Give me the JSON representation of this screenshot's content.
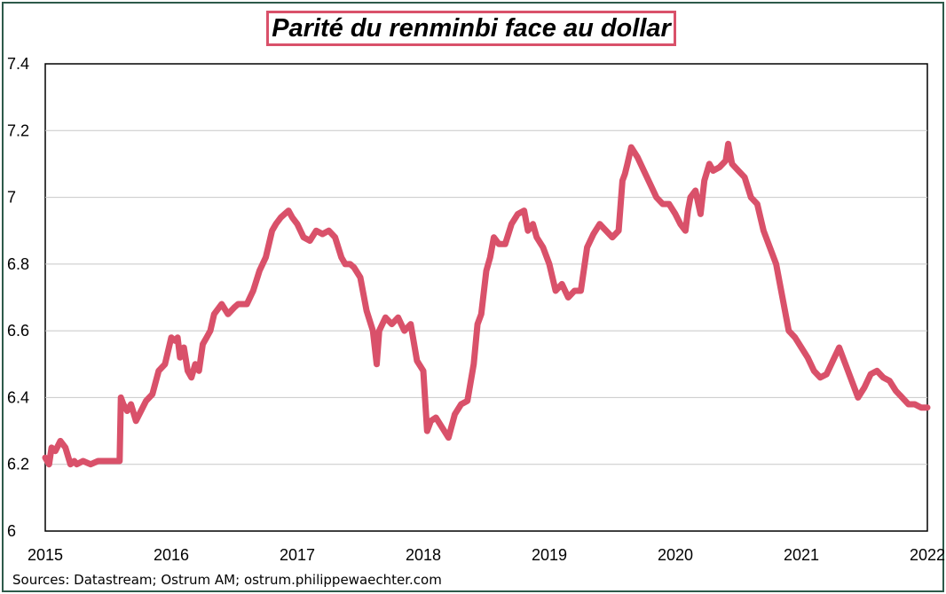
{
  "source": "Sources: Datastream; Ostrum AM; ostrum.philippewaechter.com",
  "chart_data": {
    "type": "line",
    "title": "Parité du renminbi face au dollar",
    "xlabel": "",
    "ylabel": "",
    "xlim": [
      2015,
      2022
    ],
    "ylim": [
      6,
      7.4
    ],
    "xticks": [
      "2015",
      "2016",
      "2017",
      "2018",
      "2019",
      "2020",
      "2021",
      "2022"
    ],
    "yticks": [
      "6",
      "6.2",
      "6.4",
      "6.6",
      "6.8",
      "7",
      "7.2",
      "7.4"
    ],
    "grid": "horizontal",
    "line_color": "#d9516a",
    "series": [
      {
        "x": [
          2015.0,
          2015.03,
          2015.05,
          2015.08,
          2015.12,
          2015.16,
          2015.2,
          2015.23,
          2015.25,
          2015.3,
          2015.36,
          2015.42,
          2015.5,
          2015.55,
          2015.59,
          2015.6,
          2015.62,
          2015.65,
          2015.68,
          2015.72,
          2015.76,
          2015.8,
          2015.85,
          2015.9,
          2015.95,
          2016.0,
          2016.03,
          2016.05,
          2016.07,
          2016.1,
          2016.13,
          2016.16,
          2016.19,
          2016.22,
          2016.25,
          2016.28,
          2016.31,
          2016.34,
          2016.4,
          2016.45,
          2016.5,
          2016.53,
          2016.56,
          2016.6,
          2016.65,
          2016.7,
          2016.75,
          2016.8,
          2016.83,
          2016.87,
          2016.9,
          2016.93,
          2016.96,
          2017.0,
          2017.05,
          2017.1,
          2017.15,
          2017.2,
          2017.25,
          2017.3,
          2017.35,
          2017.38,
          2017.42,
          2017.45,
          2017.5,
          2017.55,
          2017.6,
          2017.63,
          2017.65,
          2017.7,
          2017.75,
          2017.8,
          2017.85,
          2017.9,
          2017.95,
          2018.0,
          2018.03,
          2018.06,
          2018.1,
          2018.15,
          2018.2,
          2018.25,
          2018.3,
          2018.35,
          2018.4,
          2018.43,
          2018.46,
          2018.5,
          2018.53,
          2018.56,
          2018.6,
          2018.65,
          2018.7,
          2018.75,
          2018.8,
          2018.83,
          2018.87,
          2018.9,
          2018.95,
          2019.0,
          2019.05,
          2019.1,
          2019.15,
          2019.2,
          2019.25,
          2019.3,
          2019.35,
          2019.4,
          2019.45,
          2019.5,
          2019.55,
          2019.58,
          2019.6,
          2019.62,
          2019.65,
          2019.7,
          2019.75,
          2019.8,
          2019.85,
          2019.9,
          2019.95,
          2020.0,
          2020.04,
          2020.08,
          2020.1,
          2020.12,
          2020.16,
          2020.2,
          2020.23,
          2020.27,
          2020.3,
          2020.35,
          2020.4,
          2020.42,
          2020.45,
          2020.5,
          2020.55,
          2020.6,
          2020.65,
          2020.7,
          2020.75,
          2020.8,
          2020.85,
          2020.9,
          2020.95,
          2021.0,
          2021.05,
          2021.1,
          2021.15,
          2021.2,
          2021.25,
          2021.3,
          2021.35,
          2021.4,
          2021.45,
          2021.5,
          2021.55,
          2021.6,
          2021.65,
          2021.7,
          2021.75,
          2021.8,
          2021.85,
          2021.9,
          2021.95,
          2022.0
        ],
        "y": [
          6.22,
          6.2,
          6.25,
          6.24,
          6.27,
          6.25,
          6.2,
          6.21,
          6.2,
          6.21,
          6.2,
          6.21,
          6.21,
          6.21,
          6.21,
          6.4,
          6.38,
          6.36,
          6.38,
          6.33,
          6.36,
          6.39,
          6.41,
          6.48,
          6.5,
          6.58,
          6.57,
          6.58,
          6.52,
          6.55,
          6.48,
          6.46,
          6.5,
          6.48,
          6.56,
          6.58,
          6.6,
          6.65,
          6.68,
          6.65,
          6.67,
          6.68,
          6.68,
          6.68,
          6.72,
          6.78,
          6.82,
          6.9,
          6.92,
          6.94,
          6.95,
          6.96,
          6.94,
          6.92,
          6.88,
          6.87,
          6.9,
          6.89,
          6.9,
          6.88,
          6.82,
          6.8,
          6.8,
          6.79,
          6.76,
          6.66,
          6.6,
          6.5,
          6.6,
          6.64,
          6.62,
          6.64,
          6.6,
          6.62,
          6.51,
          6.48,
          6.3,
          6.33,
          6.34,
          6.31,
          6.28,
          6.35,
          6.38,
          6.39,
          6.5,
          6.62,
          6.65,
          6.78,
          6.82,
          6.88,
          6.86,
          6.86,
          6.92,
          6.95,
          6.96,
          6.9,
          6.92,
          6.88,
          6.85,
          6.8,
          6.72,
          6.74,
          6.7,
          6.72,
          6.72,
          6.85,
          6.89,
          6.92,
          6.9,
          6.88,
          6.9,
          7.05,
          7.07,
          7.1,
          7.15,
          7.12,
          7.08,
          7.04,
          7.0,
          6.98,
          6.98,
          6.95,
          6.92,
          6.9,
          6.96,
          7.0,
          7.02,
          6.95,
          7.05,
          7.1,
          7.08,
          7.09,
          7.11,
          7.16,
          7.1,
          7.08,
          7.06,
          7.0,
          6.98,
          6.9,
          6.85,
          6.8,
          6.7,
          6.6,
          6.58,
          6.55,
          6.52,
          6.48,
          6.46,
          6.47,
          6.51,
          6.55,
          6.5,
          6.45,
          6.4,
          6.43,
          6.47,
          6.48,
          6.46,
          6.45,
          6.42,
          6.4,
          6.38,
          6.38,
          6.37,
          6.37
        ]
      }
    ]
  }
}
